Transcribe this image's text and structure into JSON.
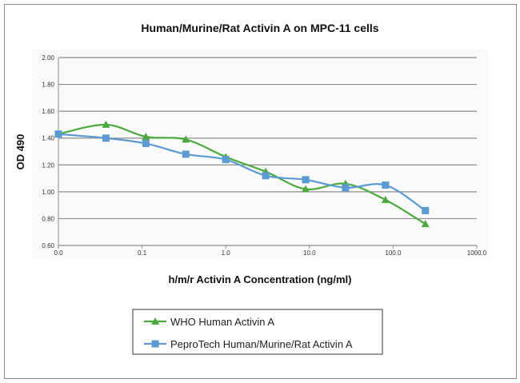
{
  "chart_data": {
    "type": "line",
    "title": "Human/Murine/Rat Activin A on MPC-11 cells",
    "xlabel": "h/m/r Activin A Concentration (ng/ml)",
    "ylabel": "OD 490",
    "xscale": "log",
    "xlim": [
      0.01,
      1000
    ],
    "ylim": [
      0.6,
      2.0
    ],
    "x_tick_labels": [
      "0.0",
      "0.1",
      "1.0",
      "10.0",
      "100.0",
      "1000.0"
    ],
    "x_tick_values": [
      0.01,
      0.1,
      1,
      10,
      100,
      1000
    ],
    "y_tick_labels": [
      "0.60",
      "0.80",
      "1.00",
      "1.20",
      "1.40",
      "1.60",
      "1.80",
      "2.00"
    ],
    "y_tick_values": [
      0.6,
      0.8,
      1.0,
      1.2,
      1.4,
      1.6,
      1.8,
      2.0
    ],
    "grid": "horizontal",
    "legend_position": "bottom",
    "x": [
      0.01,
      0.037,
      0.111,
      0.333,
      1,
      3,
      9,
      27,
      81,
      243
    ],
    "series": [
      {
        "name": "WHO Human Activin A",
        "color": "#4aaa3c",
        "marker": "triangle",
        "values": [
          1.43,
          1.5,
          1.41,
          1.39,
          1.26,
          1.15,
          1.02,
          1.06,
          0.94,
          0.76
        ]
      },
      {
        "name": "PeproTech Human/Murine/Rat Activin A",
        "color": "#5b9bd5",
        "marker": "square",
        "values": [
          1.43,
          1.4,
          1.36,
          1.28,
          1.24,
          1.12,
          1.09,
          1.03,
          1.05,
          0.86
        ]
      }
    ]
  }
}
